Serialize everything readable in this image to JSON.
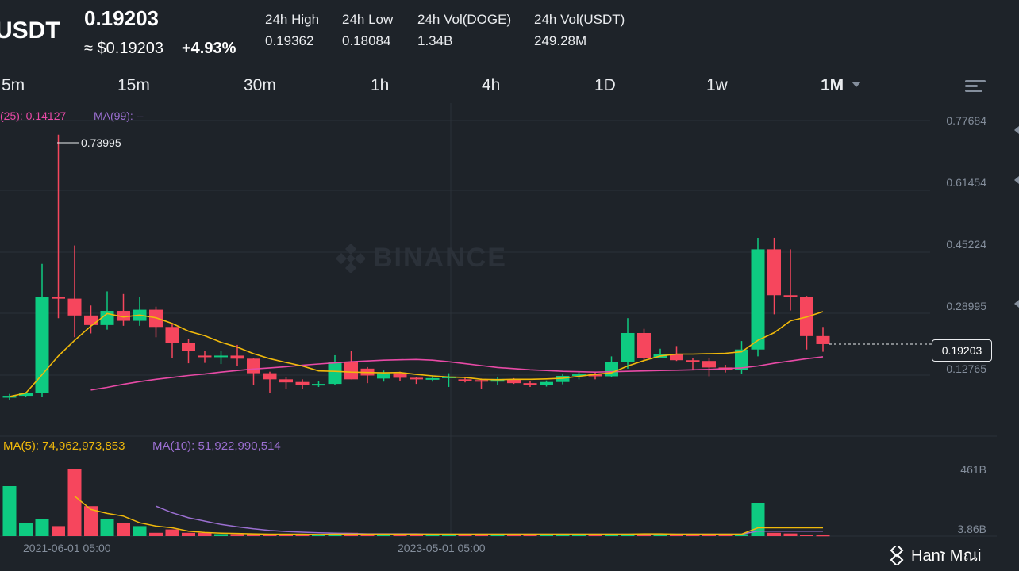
{
  "header": {
    "pair": "USDT",
    "last_price": "0.19203",
    "approx_usd": "≈ $0.19203",
    "change_pct": "+4.93%",
    "stats": [
      {
        "label": "24h High",
        "value": "0.19362"
      },
      {
        "label": "24h Low",
        "value": "0.18084"
      },
      {
        "label": "24h Vol(DOGE)",
        "value": "1.34B"
      },
      {
        "label": "24h Vol(USDT)",
        "value": "249.28M"
      }
    ]
  },
  "timeframes": {
    "items": [
      "5m",
      "15m",
      "30m",
      "1h",
      "4h",
      "1D",
      "1w",
      "1M"
    ],
    "active": "1M"
  },
  "legend": {
    "ma25": "(25): 0.14127",
    "ma99": "MA(99): --",
    "vol_ma5": "MA(5): 74,962,973,853",
    "vol_ma10": "MA(10): 51,922,990,514"
  },
  "price_axis": [
    "0.77684",
    "0.61454",
    "0.45224",
    "0.28995",
    "0.12765"
  ],
  "current_price_tag": "0.19203",
  "peak_label": "0.73995",
  "volume_axis": [
    "461B",
    "3.86B"
  ],
  "time_axis": [
    "2021-06-01 05:00",
    "2023-05-01 05:00"
  ],
  "watermark": "BINANCE",
  "footer": "Hanז Mณi",
  "colors": {
    "up": "#0ecb81",
    "down": "#f6465d",
    "ma_yellow": "#f0b90b",
    "ma_pink": "#e84aa6",
    "ma_purple": "#9b6fd1",
    "background": "#1e2329"
  },
  "chart_data": {
    "type": "candlestick",
    "candles": [
      {
        "o": 0.052,
        "h": 0.062,
        "l": 0.045,
        "c": 0.057
      },
      {
        "o": 0.057,
        "h": 0.067,
        "l": 0.053,
        "c": 0.064
      },
      {
        "o": 0.064,
        "h": 0.402,
        "l": 0.055,
        "c": 0.315
      },
      {
        "o": 0.315,
        "h": 0.74,
        "l": 0.26,
        "c": 0.311
      },
      {
        "o": 0.311,
        "h": 0.45,
        "l": 0.21,
        "c": 0.267
      },
      {
        "o": 0.267,
        "h": 0.293,
        "l": 0.22,
        "c": 0.242
      },
      {
        "o": 0.242,
        "h": 0.33,
        "l": 0.23,
        "c": 0.279
      },
      {
        "o": 0.279,
        "h": 0.323,
        "l": 0.24,
        "c": 0.253
      },
      {
        "o": 0.253,
        "h": 0.316,
        "l": 0.24,
        "c": 0.282
      },
      {
        "o": 0.282,
        "h": 0.29,
        "l": 0.21,
        "c": 0.237
      },
      {
        "o": 0.237,
        "h": 0.244,
        "l": 0.155,
        "c": 0.196
      },
      {
        "o": 0.196,
        "h": 0.205,
        "l": 0.142,
        "c": 0.175
      },
      {
        "o": 0.162,
        "h": 0.175,
        "l": 0.143,
        "c": 0.159
      },
      {
        "o": 0.158,
        "h": 0.175,
        "l": 0.14,
        "c": 0.162
      },
      {
        "o": 0.162,
        "h": 0.19,
        "l": 0.135,
        "c": 0.154
      },
      {
        "o": 0.154,
        "h": 0.155,
        "l": 0.085,
        "c": 0.116
      },
      {
        "o": 0.116,
        "h": 0.12,
        "l": 0.065,
        "c": 0.1
      },
      {
        "o": 0.1,
        "h": 0.105,
        "l": 0.075,
        "c": 0.092
      },
      {
        "o": 0.093,
        "h": 0.1,
        "l": 0.074,
        "c": 0.086
      },
      {
        "o": 0.086,
        "h": 0.095,
        "l": 0.08,
        "c": 0.088
      },
      {
        "o": 0.088,
        "h": 0.163,
        "l": 0.085,
        "c": 0.146
      },
      {
        "o": 0.146,
        "h": 0.175,
        "l": 0.1,
        "c": 0.1
      },
      {
        "o": 0.128,
        "h": 0.132,
        "l": 0.09,
        "c": 0.11
      },
      {
        "o": 0.102,
        "h": 0.123,
        "l": 0.094,
        "c": 0.116
      },
      {
        "o": 0.116,
        "h": 0.12,
        "l": 0.095,
        "c": 0.104
      },
      {
        "o": 0.104,
        "h": 0.106,
        "l": 0.088,
        "c": 0.1
      },
      {
        "o": 0.1,
        "h": 0.108,
        "l": 0.094,
        "c": 0.103
      },
      {
        "o": 0.103,
        "h": 0.116,
        "l": 0.08,
        "c": 0.107
      },
      {
        "o": 0.1,
        "h": 0.107,
        "l": 0.092,
        "c": 0.098
      },
      {
        "o": 0.098,
        "h": 0.102,
        "l": 0.075,
        "c": 0.094
      },
      {
        "o": 0.094,
        "h": 0.107,
        "l": 0.085,
        "c": 0.101
      },
      {
        "o": 0.1,
        "h": 0.103,
        "l": 0.088,
        "c": 0.09
      },
      {
        "o": 0.09,
        "h": 0.095,
        "l": 0.08,
        "c": 0.086
      },
      {
        "o": 0.086,
        "h": 0.097,
        "l": 0.081,
        "c": 0.093
      },
      {
        "o": 0.093,
        "h": 0.113,
        "l": 0.087,
        "c": 0.109
      },
      {
        "o": 0.109,
        "h": 0.12,
        "l": 0.1,
        "c": 0.113
      },
      {
        "o": 0.113,
        "h": 0.12,
        "l": 0.1,
        "c": 0.108
      },
      {
        "o": 0.108,
        "h": 0.16,
        "l": 0.106,
        "c": 0.146
      },
      {
        "o": 0.146,
        "h": 0.26,
        "l": 0.128,
        "c": 0.221
      },
      {
        "o": 0.221,
        "h": 0.232,
        "l": 0.15,
        "c": 0.155
      },
      {
        "o": 0.155,
        "h": 0.18,
        "l": 0.155,
        "c": 0.167
      },
      {
        "o": 0.167,
        "h": 0.187,
        "l": 0.148,
        "c": 0.15
      },
      {
        "o": 0.15,
        "h": 0.156,
        "l": 0.125,
        "c": 0.148
      },
      {
        "o": 0.148,
        "h": 0.155,
        "l": 0.108,
        "c": 0.131
      },
      {
        "o": 0.131,
        "h": 0.138,
        "l": 0.118,
        "c": 0.125
      },
      {
        "o": 0.125,
        "h": 0.2,
        "l": 0.114,
        "c": 0.178
      },
      {
        "o": 0.178,
        "h": 0.47,
        "l": 0.16,
        "c": 0.44
      },
      {
        "o": 0.44,
        "h": 0.47,
        "l": 0.27,
        "c": 0.32
      },
      {
        "o": 0.32,
        "h": 0.44,
        "l": 0.28,
        "c": 0.315
      },
      {
        "o": 0.315,
        "h": 0.318,
        "l": 0.178,
        "c": 0.213
      },
      {
        "o": 0.213,
        "h": 0.237,
        "l": 0.172,
        "c": 0.192
      }
    ],
    "ma_short": [
      0.055,
      0.064,
      0.112,
      0.161,
      0.202,
      0.239,
      0.272,
      0.263,
      0.268,
      0.261,
      0.246,
      0.226,
      0.214,
      0.197,
      0.184,
      0.167,
      0.154,
      0.144,
      0.135,
      0.122,
      0.121,
      0.119,
      0.118,
      0.117,
      0.118,
      0.113,
      0.109,
      0.106,
      0.105,
      0.1,
      0.099,
      0.1,
      0.1,
      0.101,
      0.103,
      0.108,
      0.113,
      0.117,
      0.135,
      0.149,
      0.161,
      0.166,
      0.166,
      0.167,
      0.168,
      0.172,
      0.202,
      0.222,
      0.253,
      0.263,
      0.277
    ],
    "ma25": [
      null,
      null,
      null,
      null,
      null,
      0.072,
      0.079,
      0.087,
      0.094,
      0.1,
      0.105,
      0.11,
      0.114,
      0.119,
      0.123,
      0.127,
      0.13,
      0.133,
      0.137,
      0.14,
      0.143,
      0.146,
      0.148,
      0.15,
      0.151,
      0.152,
      0.15,
      0.146,
      0.141,
      0.136,
      0.131,
      0.128,
      0.125,
      0.123,
      0.121,
      0.12,
      0.119,
      0.12,
      0.121,
      0.122,
      0.123,
      0.124,
      0.125,
      0.126,
      0.128,
      0.13,
      0.135,
      0.142,
      0.148,
      0.154,
      0.159
    ],
    "volume": [
      150,
      40,
      50,
      30,
      200,
      90,
      50,
      40,
      30,
      10,
      20,
      10,
      10,
      6,
      6,
      6,
      4,
      6,
      6,
      5,
      8,
      10,
      5,
      6,
      6,
      5,
      5,
      6,
      6,
      5,
      5,
      6,
      5,
      5,
      5,
      5,
      5,
      5,
      5,
      7,
      7,
      5,
      5,
      5,
      5,
      6,
      100,
      10,
      8,
      4,
      3
    ],
    "volume_scale": "B",
    "vol_ma5": [
      null,
      null,
      null,
      null,
      120,
      80,
      68,
      60,
      40,
      30,
      25,
      15,
      11,
      9,
      8,
      7,
      6,
      6,
      6,
      5,
      6,
      6,
      6,
      6,
      6,
      6,
      6,
      6,
      6,
      6,
      6,
      6,
      6,
      6,
      6,
      6,
      6,
      6,
      6,
      7,
      7,
      6,
      6,
      6,
      6,
      6,
      25,
      25,
      25,
      25,
      25
    ],
    "vol_ma10": [
      null,
      null,
      null,
      null,
      null,
      null,
      null,
      null,
      null,
      90,
      70,
      55,
      45,
      35,
      28,
      22,
      17,
      14,
      12,
      10,
      9,
      8,
      7,
      7,
      7,
      7,
      6,
      6,
      6,
      6,
      6,
      6,
      6,
      6,
      6,
      6,
      6,
      6,
      6,
      6,
      6,
      6,
      6,
      6,
      6,
      6,
      15,
      15,
      15,
      15,
      15
    ]
  }
}
